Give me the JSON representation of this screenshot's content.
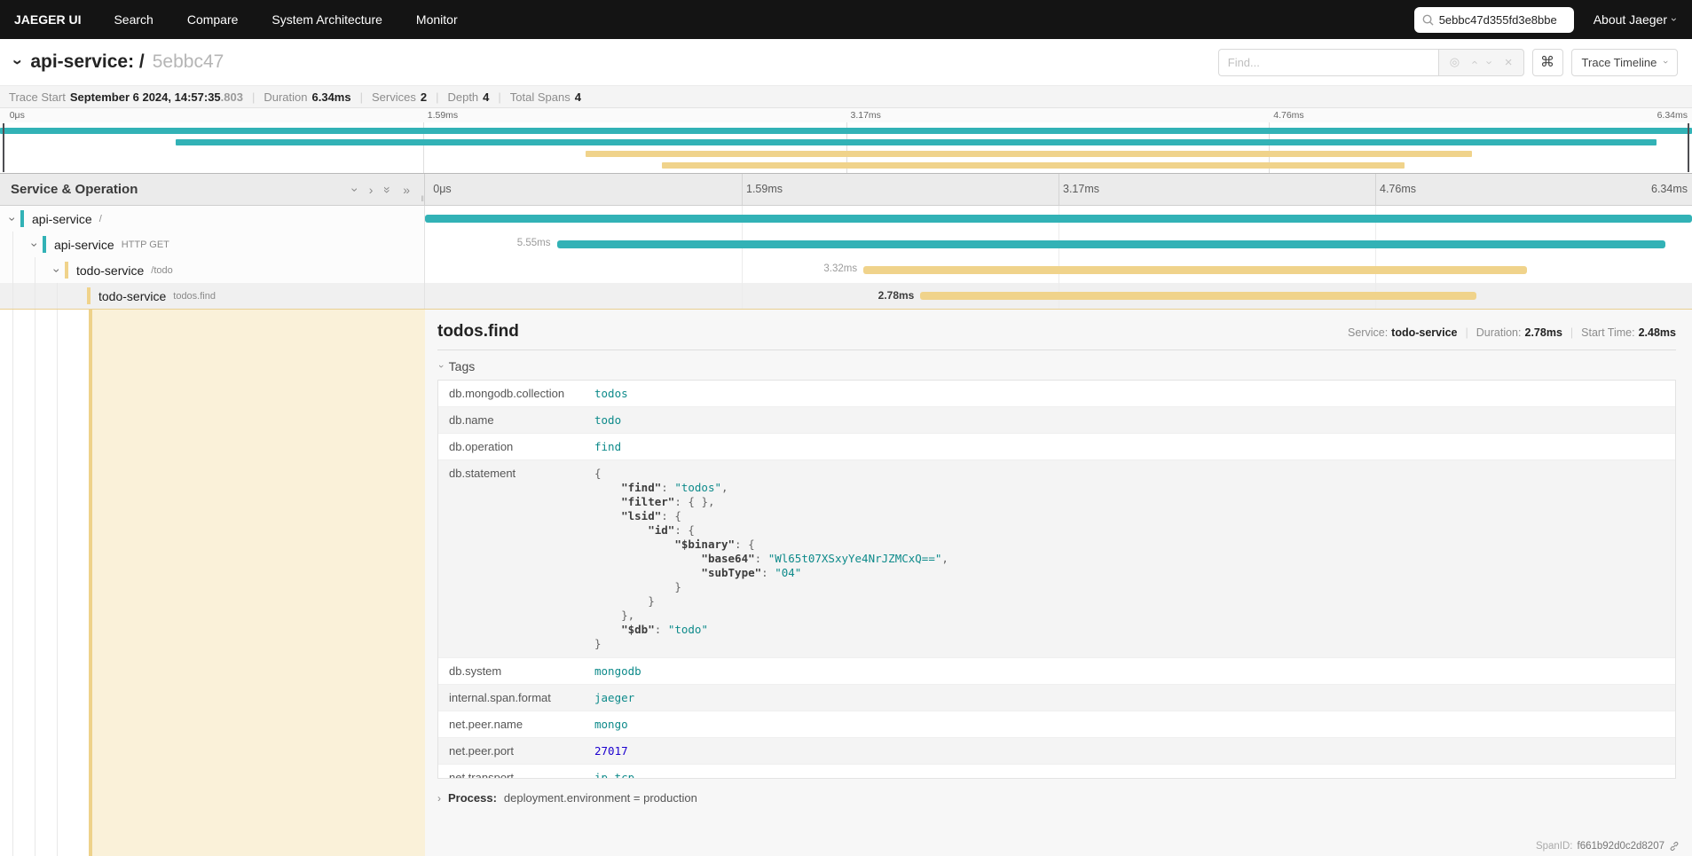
{
  "colors": {
    "teal": "#32b2b6",
    "yellow": "#f0d38b",
    "nav_bg": "#141414",
    "selected_row": "#f0f0f0",
    "detail_tint": "#faf1d9",
    "tag_string": "#0d8a8a",
    "tag_number": "#1c00cf"
  },
  "nav": {
    "brand": "JAEGER UI",
    "items": [
      "Search",
      "Compare",
      "System Architecture",
      "Monitor"
    ],
    "search_value": "5ebbc47d355fd3e8bbe",
    "about_label": "About Jaeger"
  },
  "trace_header": {
    "title": "api-service: /",
    "id_short": "5ebbc47",
    "find_placeholder": "Find...",
    "shortcut_label": "⌘",
    "view_label": "Trace Timeline"
  },
  "meta": {
    "trace_start_label": "Trace Start",
    "trace_start_value": "September 6 2024, 14:57:35",
    "trace_start_ms": ".803",
    "duration_label": "Duration",
    "duration_value": "6.34ms",
    "services_label": "Services",
    "services_value": "2",
    "depth_label": "Depth",
    "depth_value": "4",
    "total_spans_label": "Total Spans",
    "total_spans_value": "4"
  },
  "timeline": {
    "col_header": "Service & Operation",
    "ticks": [
      "0μs",
      "1.59ms",
      "3.17ms",
      "4.76ms",
      "6.34ms"
    ]
  },
  "minimap": {
    "bars": [
      {
        "start": 0,
        "end": 100,
        "color": "teal"
      },
      {
        "start": 10.4,
        "end": 97.9,
        "color": "teal"
      },
      {
        "start": 34.6,
        "end": 87.0,
        "color": "yellow"
      },
      {
        "start": 39.1,
        "end": 83.0,
        "color": "yellow"
      }
    ]
  },
  "spans": [
    {
      "service": "api-service",
      "operation": "/",
      "depth": 0,
      "color": "teal",
      "start": 0,
      "end": 100,
      "duration_label": "",
      "has_children": true,
      "selected": false
    },
    {
      "service": "api-service",
      "operation": "HTTP GET",
      "depth": 1,
      "color": "teal",
      "start": 10.4,
      "end": 97.9,
      "duration_label": "5.55ms",
      "has_children": true,
      "selected": false
    },
    {
      "service": "todo-service",
      "operation": "/todo",
      "depth": 2,
      "color": "yellow",
      "start": 34.6,
      "end": 87.0,
      "duration_label": "3.32ms",
      "has_children": true,
      "selected": false
    },
    {
      "service": "todo-service",
      "operation": "todos.find",
      "depth": 3,
      "color": "yellow",
      "start": 39.1,
      "end": 83.0,
      "duration_label": "2.78ms",
      "has_children": false,
      "selected": true
    }
  ],
  "detail": {
    "title": "todos.find",
    "service_label": "Service:",
    "service_value": "todo-service",
    "duration_label": "Duration:",
    "duration_value": "2.78ms",
    "start_label": "Start Time:",
    "start_value": "2.48ms",
    "tags_label": "Tags",
    "tags": [
      {
        "key": "db.mongodb.collection",
        "value": "todos",
        "type": "string"
      },
      {
        "key": "db.name",
        "value": "todo",
        "type": "string"
      },
      {
        "key": "db.operation",
        "value": "find",
        "type": "string"
      },
      {
        "key": "db.statement",
        "type": "json"
      },
      {
        "key": "db.system",
        "value": "mongodb",
        "type": "string"
      },
      {
        "key": "internal.span.format",
        "value": "jaeger",
        "type": "string"
      },
      {
        "key": "net.peer.name",
        "value": "mongo",
        "type": "string"
      },
      {
        "key": "net.peer.port",
        "value": "27017",
        "type": "number"
      },
      {
        "key": "net.transport",
        "value": "ip_tcp",
        "type": "string"
      }
    ],
    "statement": {
      "find": "todos",
      "filter": {},
      "lsid": {
        "id": {
          "$binary": {
            "base64": "Wl65t07XSxyYe4NrJZMCxQ==",
            "subType": "04"
          }
        }
      },
      "$db": "todo"
    },
    "process_label": "Process:",
    "process_value": "deployment.environment = production",
    "span_id_label": "SpanID:",
    "span_id_value": "f661b92d0c2d8207"
  }
}
